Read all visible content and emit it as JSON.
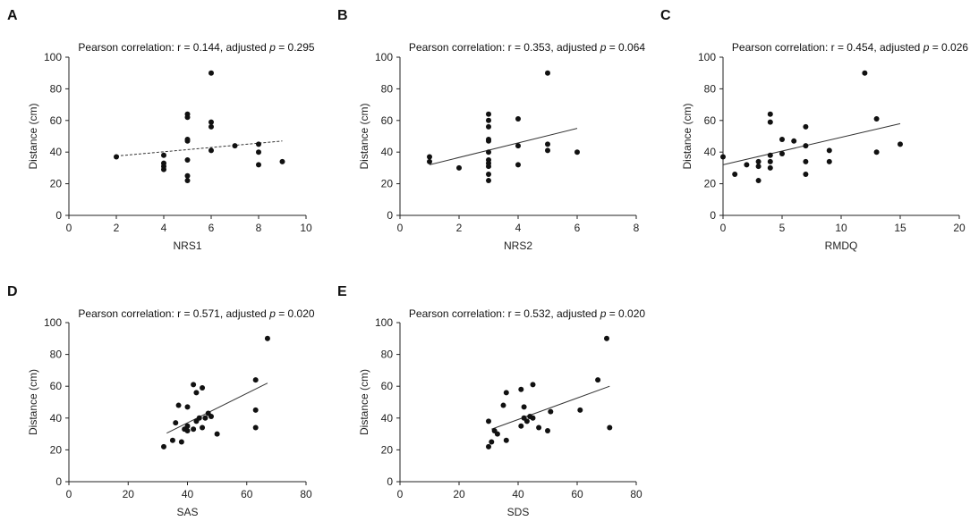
{
  "chart_data": [
    {
      "type": "scatter",
      "panel": "A",
      "title": "Pearson correlation: r = 0.144, adjusted ",
      "p_symbol": "p",
      "p_text": " = 0.295",
      "xlabel": "NRS1",
      "ylabel": "Distance (cm)",
      "xlim": [
        0,
        10
      ],
      "ylim": [
        0,
        100
      ],
      "xticks": [
        0,
        2,
        4,
        6,
        8,
        10
      ],
      "yticks": [
        0,
        20,
        40,
        60,
        80,
        100
      ],
      "points": [
        [
          2,
          37
        ],
        [
          4,
          38
        ],
        [
          4,
          33
        ],
        [
          4,
          31
        ],
        [
          4,
          29
        ],
        [
          5,
          64
        ],
        [
          5,
          62
        ],
        [
          5,
          48
        ],
        [
          5,
          47
        ],
        [
          5,
          35
        ],
        [
          5,
          25
        ],
        [
          5,
          22
        ],
        [
          6,
          90
        ],
        [
          6,
          59
        ],
        [
          6,
          56
        ],
        [
          6,
          41
        ],
        [
          7,
          44
        ],
        [
          8,
          45
        ],
        [
          8,
          40
        ],
        [
          8,
          32
        ],
        [
          9,
          34
        ]
      ],
      "fit": {
        "x": [
          2,
          9
        ],
        "y": [
          37.5,
          47
        ],
        "style": "dashed"
      }
    },
    {
      "type": "scatter",
      "panel": "B",
      "title": "Pearson correlation: r = 0.353, adjusted ",
      "p_symbol": "p",
      "p_text": " = 0.064",
      "xlabel": "NRS2",
      "ylabel": "Distance (cm)",
      "xlim": [
        0,
        8
      ],
      "ylim": [
        0,
        100
      ],
      "xticks": [
        0,
        2,
        4,
        6,
        8
      ],
      "yticks": [
        0,
        20,
        40,
        60,
        80,
        100
      ],
      "points": [
        [
          1,
          37
        ],
        [
          1,
          34
        ],
        [
          2,
          30
        ],
        [
          3,
          64
        ],
        [
          3,
          60
        ],
        [
          3,
          56
        ],
        [
          3,
          48
        ],
        [
          3,
          47
        ],
        [
          3,
          40
        ],
        [
          3,
          35
        ],
        [
          3,
          33
        ],
        [
          3,
          31
        ],
        [
          3,
          26
        ],
        [
          3,
          22
        ],
        [
          4,
          61
        ],
        [
          4,
          44
        ],
        [
          4,
          32
        ],
        [
          5,
          90
        ],
        [
          5,
          45
        ],
        [
          5,
          41
        ],
        [
          6,
          40
        ]
      ],
      "fit": {
        "x": [
          1,
          6
        ],
        "y": [
          32,
          55
        ],
        "style": "solid"
      }
    },
    {
      "type": "scatter",
      "panel": "C",
      "title": "Pearson correlation: r = 0.454, adjusted ",
      "p_symbol": "p",
      "p_text": " = 0.026",
      "xlabel": "RMDQ",
      "ylabel": "Distance (cm)",
      "xlim": [
        0,
        20
      ],
      "ylim": [
        0,
        100
      ],
      "xticks": [
        0,
        5,
        10,
        15,
        20
      ],
      "yticks": [
        0,
        20,
        40,
        60,
        80,
        100
      ],
      "points": [
        [
          0,
          37
        ],
        [
          1,
          26
        ],
        [
          2,
          32
        ],
        [
          3,
          34
        ],
        [
          3,
          31
        ],
        [
          3,
          22
        ],
        [
          4,
          64
        ],
        [
          4,
          59
        ],
        [
          4,
          38
        ],
        [
          4,
          34
        ],
        [
          4,
          30
        ],
        [
          5,
          48
        ],
        [
          5,
          39
        ],
        [
          6,
          47
        ],
        [
          7,
          56
        ],
        [
          7,
          44
        ],
        [
          7,
          34
        ],
        [
          7,
          26
        ],
        [
          9,
          41
        ],
        [
          9,
          34
        ],
        [
          12,
          90
        ],
        [
          13,
          61
        ],
        [
          13,
          40
        ],
        [
          15,
          45
        ]
      ],
      "fit": {
        "x": [
          0,
          15
        ],
        "y": [
          32,
          58
        ],
        "style": "solid"
      }
    },
    {
      "type": "scatter",
      "panel": "D",
      "title": "Pearson correlation: r = 0.571, adjusted ",
      "p_symbol": "p",
      "p_text": " = 0.020",
      "xlabel": "SAS",
      "ylabel": "Distance (cm)",
      "xlim": [
        0,
        80
      ],
      "ylim": [
        0,
        100
      ],
      "xticks": [
        0,
        20,
        40,
        60,
        80
      ],
      "yticks": [
        0,
        20,
        40,
        60,
        80,
        100
      ],
      "points": [
        [
          32,
          22
        ],
        [
          35,
          26
        ],
        [
          36,
          37
        ],
        [
          37,
          48
        ],
        [
          38,
          25
        ],
        [
          39,
          33
        ],
        [
          40,
          47
        ],
        [
          40,
          35
        ],
        [
          40,
          32
        ],
        [
          42,
          61
        ],
        [
          42,
          33
        ],
        [
          43,
          56
        ],
        [
          43,
          38
        ],
        [
          44,
          40
        ],
        [
          45,
          59
        ],
        [
          45,
          34
        ],
        [
          46,
          40
        ],
        [
          47,
          43
        ],
        [
          48,
          41
        ],
        [
          50,
          30
        ],
        [
          63,
          64
        ],
        [
          63,
          45
        ],
        [
          63,
          34
        ],
        [
          67,
          90
        ]
      ],
      "fit": {
        "x": [
          33,
          67
        ],
        "y": [
          30.5,
          62
        ],
        "style": "solid"
      }
    },
    {
      "type": "scatter",
      "panel": "E",
      "title": "Pearson correlation: r = 0.532, adjusted ",
      "p_symbol": "p",
      "p_text": " = 0.020",
      "xlabel": "SDS",
      "ylabel": "Distance (cm)",
      "xlim": [
        0,
        80
      ],
      "ylim": [
        0,
        100
      ],
      "xticks": [
        0,
        20,
        40,
        60,
        80
      ],
      "yticks": [
        0,
        20,
        40,
        60,
        80,
        100
      ],
      "points": [
        [
          30,
          38
        ],
        [
          30,
          22
        ],
        [
          31,
          25
        ],
        [
          32,
          32
        ],
        [
          33,
          30
        ],
        [
          35,
          48
        ],
        [
          36,
          56
        ],
        [
          36,
          26
        ],
        [
          41,
          58
        ],
        [
          41,
          35
        ],
        [
          42,
          47
        ],
        [
          42,
          40
        ],
        [
          43,
          38
        ],
        [
          44,
          41
        ],
        [
          45,
          61
        ],
        [
          45,
          40
        ],
        [
          47,
          34
        ],
        [
          50,
          32
        ],
        [
          51,
          44
        ],
        [
          61,
          45
        ],
        [
          67,
          64
        ],
        [
          70,
          90
        ],
        [
          71,
          34
        ]
      ],
      "fit": {
        "x": [
          31,
          71
        ],
        "y": [
          33,
          60
        ],
        "style": "solid"
      }
    }
  ]
}
